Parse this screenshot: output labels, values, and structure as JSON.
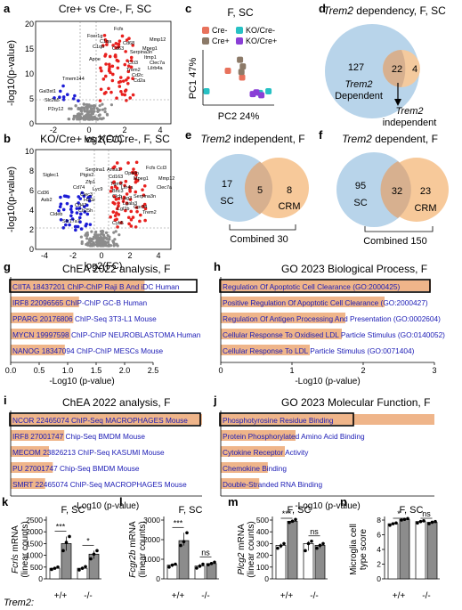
{
  "panels": {
    "a": {
      "letter": "a",
      "title": "Cre+ vs Cre-, F, SC",
      "xlabel": "log2(FC)",
      "ylabel": "-log10(p-value)",
      "xticks": [
        "-2",
        "0",
        "2",
        "4"
      ],
      "yticks": [
        "0",
        "5",
        "10",
        "15",
        "20"
      ],
      "genes": [
        "Fcfs",
        "Mmp12",
        "Foer1g",
        "C1qa",
        "Cd68",
        "Cd63",
        "C1qb",
        "Serpina3n",
        "Mpeg1",
        "Itmp1",
        "Clec7a",
        "Apoe",
        "Lilrb4a",
        "Ccl3",
        "Trem2",
        "Cd2c",
        "Cd2a",
        "Tmem144",
        "Gal3st1",
        "Slc2a5",
        "P2ry12"
      ]
    },
    "b": {
      "letter": "b",
      "title": "KO/Cre+ vs KO/Cre-, F, SC",
      "xlabel": "log2(FC)",
      "ylabel": "-log10(p-value)",
      "xticks": [
        "-4",
        "-2",
        "0",
        "2",
        "4"
      ],
      "yticks": [
        "0",
        "2",
        "4",
        "6",
        "8",
        "10"
      ],
      "genes": [
        "Fcfs",
        "Ccl3",
        "Serpina1",
        "Anxa1",
        "Opalin",
        "Mpeg1",
        "Ptgis2",
        "Cd163",
        "Mmp12",
        "Siglec1",
        "Zfp1",
        "Tgm2",
        "Clec7a",
        "Lilr4a",
        "Cd74",
        "Lyc9",
        "Bnc3",
        "Cd36",
        "Clec3",
        "Clcb",
        "Lag3",
        "Serpina3n",
        "Asb2",
        "H2Gr",
        "Lgals3",
        "Cd47",
        "Lgl1b",
        "Gpr34",
        "Ch25h",
        "Trem2",
        "Cldeb",
        "Slc17a7",
        "Cyb5"
      ]
    },
    "c": {
      "letter": "c",
      "title": "F, SC",
      "xlabel": "PC2 24%",
      "ylabel": "PC1 47%",
      "legend": [
        "Cre-",
        "Cre+",
        "KO/Cre-",
        "KO/Cre+"
      ]
    },
    "d": {
      "letter": "d",
      "title_italic": "Trem2",
      "title_rest": " dependency, F, SC",
      "left_num": "127",
      "overlap_num": "22",
      "right_num": "4",
      "left_label_italic": "Trem2",
      "left_label_rest": "Dependent",
      "right_label_italic": "Trem2",
      "right_label_rest": "independent"
    },
    "e": {
      "letter": "e",
      "title_italic": "Trem2",
      "title_rest": "  independent, F",
      "left_num": "17",
      "overlap_num": "5",
      "right_num": "8",
      "left_label": "SC",
      "right_label": "CRM",
      "combined": "Combined 30"
    },
    "f": {
      "letter": "f",
      "title_italic": "Trem2",
      "title_rest": " dependent, F",
      "left_num": "95",
      "overlap_num": "32",
      "right_num": "23",
      "left_label": "SC",
      "right_label": "CRM",
      "combined": "Combined 150"
    },
    "g": {
      "letter": "g",
      "title": "ChEA 2022 analysis, F",
      "xlabel": "-Log10 (p-value)",
      "xticks": [
        "0.0",
        "0.5",
        "1.0",
        "1.5",
        "2.0",
        "2.5"
      ],
      "terms": [
        "CIITA 18437201 ChIP-ChIP Raji B And iDC Human",
        "IRF8 22096565 ChIP-ChIP GC-B Human",
        "PPARG 20176806 ChIP-Seq 3T3-L1 Mouse",
        "MYCN 19997598 ChIP-ChIP NEUROBLASTOMA Human",
        "NANOG 18347094 ChIP-ChIP MESCs Mouse"
      ]
    },
    "h": {
      "letter": "h",
      "title": "GO 2023 Biological Process, F",
      "xlabel": "-Log10 (p-value)",
      "xticks": [
        "0",
        "1",
        "2",
        "3"
      ],
      "terms": [
        "Regulation Of Apoptotic Cell Clearance (GO:2000425)",
        "Positive Regulation Of Apoptotic Cell Clearance (GO:2000427)",
        "Regulation Of Antigen Processing And Presentation (GO:0002604)",
        "Cellular Response To Oxidised LDL Particle Stimulus (GO:0140052)",
        "Cellular Response To LDL Particle Stimulus (GO:0071404)"
      ]
    },
    "i": {
      "letter": "i",
      "title": "ChEA 2022 analysis, F",
      "xlabel": "-Log10 (p-value)",
      "terms": [
        "NCOR 22465074 ChIP-Seq MACROPHAGES Mouse",
        "IRF8 27001747 Chip-Seq BMDM Mouse",
        "MECOM 23826213 ChIP-Seq KASUMI Mouse",
        "PU 27001747 Chip-Seq BMDM Mouse",
        "SMRT 22465074 ChIP-Seq MACROPHAGES Mouse"
      ]
    },
    "j": {
      "letter": "j",
      "title": "GO 2023 Molecular Function, F",
      "xlabel": "-Log10 (p-value)",
      "terms": [
        "Phosphotyrosine Residue Binding",
        "Protein Phosphorylated Amino Acid Binding",
        "Cytokine Receptor Activity",
        "Chemokine Binding",
        "Double-Stranded RNA Binding"
      ]
    },
    "k": {
      "letter": "k",
      "title": "F, SC",
      "gene": "Fcrls",
      "ylabel_rest": " mRNA",
      "ylabel2": "(linear counts)",
      "yticks": [
        "0",
        "500",
        "1000",
        "1500",
        "2000",
        "2500"
      ],
      "sig": [
        "***",
        "*"
      ],
      "groups": [
        "+/+",
        "-/-"
      ]
    },
    "l": {
      "letter": "l",
      "title": "F, SC",
      "gene": "Fcgr2b",
      "ylabel_rest": " mRNA",
      "ylabel2": "(linear counts)",
      "yticks": [
        "0",
        "1000",
        "2000",
        "3000"
      ],
      "sig": [
        "***",
        "ns"
      ],
      "groups": [
        "+/+",
        "-/-"
      ]
    },
    "m": {
      "letter": "m",
      "title": "F, SC",
      "gene": "Plcg2",
      "ylabel_rest": " mRNA",
      "ylabel2": "(linear counts)",
      "yticks": [
        "0",
        "100",
        "200",
        "300",
        "400",
        "500"
      ],
      "sig": [
        "***",
        "ns"
      ],
      "groups": [
        "+/+",
        "-/-"
      ]
    },
    "n": {
      "letter": "n",
      "title": "F, SC",
      "ylabel": "Microglia cell",
      "ylabel2": "type score",
      "yticks": [
        "0",
        "2",
        "4",
        "6",
        "8"
      ],
      "sig": [
        "*",
        "ns"
      ],
      "groups": [
        "+/+",
        "-/-"
      ]
    },
    "trem2_label": "Trem2:"
  },
  "colors": {
    "red": "#e8201e",
    "blue": "#1c1cd6",
    "grey": "#8c8c8c",
    "venn_blue": "#b8d4ea",
    "venn_orange": "#f7c99a",
    "overlap": "#d7b08f",
    "enrich_bar": "#efb58a",
    "enrich_text": "#1b1bb5",
    "bar_white": "#ffffff",
    "bar_grey": "#8c8c8c",
    "pca": {
      "Cre-": "#e8725c",
      "Cre+": "#8c7a68",
      "KO/Cre-": "#27c1c4",
      "KO/Cre+": "#8a3fd6"
    }
  },
  "chart_data": [
    {
      "panel": "g",
      "type": "bar",
      "orientation": "horizontal",
      "categories": [
        "CIITA 18437201 ChIP-ChIP Raji B And iDC Human",
        "IRF8 22096565 ChIP-ChIP GC-B Human",
        "PPARG 20176806 ChIP-Seq 3T3-L1 Mouse",
        "MYCN 19997598 ChIP-ChIP NEUROBLASTOMA Human",
        "NANOG 18347094 ChIP-ChIP MESCs Mouse"
      ],
      "values": [
        2.35,
        1.2,
        1.1,
        1.05,
        0.95
      ],
      "xlim": [
        0,
        2.5
      ]
    },
    {
      "panel": "h",
      "type": "bar",
      "orientation": "horizontal",
      "categories": [
        "Regulation Of Apoptotic Cell Clearance (GO:2000425)",
        "Positive Regulation Of Apoptotic Cell Clearance (GO:2000427)",
        "Regulation Of Antigen Processing And Presentation (GO:0002604)",
        "Cellular Response To Oxidised LDL Particle Stimulus (GO:0140052)",
        "Cellular Response To LDL Particle Stimulus (GO:0071404)"
      ],
      "values": [
        2.95,
        2.3,
        1.75,
        1.7,
        1.25
      ],
      "xlim": [
        0,
        3
      ]
    },
    {
      "panel": "i",
      "type": "bar",
      "orientation": "horizontal",
      "categories": [
        "NCOR 22465074 ChIP-Seq MACROPHAGES Mouse",
        "IRF8 27001747 Chip-Seq BMDM Mouse",
        "MECOM 23826213 ChIP-Seq KASUMI Mouse",
        "PU 27001747 Chip-Seq BMDM Mouse",
        "SMRT 22465074 ChIP-Seq MACROPHAGES Mouse"
      ],
      "values": [
        1.0,
        0.28,
        0.2,
        0.22,
        0.18
      ],
      "xlim": [
        0,
        1
      ]
    },
    {
      "panel": "j",
      "type": "bar",
      "orientation": "horizontal",
      "categories": [
        "Phosphotyrosine Residue Binding",
        "Protein Phosphorylated Amino Acid Binding",
        "Cytokine Receptor Activity",
        "Chemokine Binding",
        "Double-Stranded RNA Binding"
      ],
      "values": [
        1.0,
        0.35,
        0.3,
        0.22,
        0.18
      ],
      "xlim": [
        0,
        1
      ]
    },
    {
      "panel": "k",
      "type": "bar",
      "categories": [
        "+/+",
        "+/+",
        "-/-",
        "-/-"
      ],
      "values": [
        450,
        1500,
        450,
        1050
      ],
      "points": [
        [
          400,
          450,
          500
        ],
        [
          1200,
          1550,
          1800
        ],
        [
          380,
          450,
          520
        ],
        [
          850,
          1050,
          1200
        ]
      ],
      "ylim": [
        0,
        2500
      ]
    },
    {
      "panel": "l",
      "type": "bar",
      "categories": [
        "+/+",
        "+/+",
        "-/-",
        "-/-"
      ],
      "values": [
        700,
        1950,
        650,
        780
      ],
      "points": [
        [
          600,
          700,
          750
        ],
        [
          1700,
          1900,
          2350
        ],
        [
          550,
          650,
          750
        ],
        [
          720,
          780,
          850
        ]
      ],
      "ylim": [
        0,
        3000
      ]
    },
    {
      "panel": "m",
      "type": "bar",
      "categories": [
        "+/+",
        "+/+",
        "-/-",
        "-/-"
      ],
      "values": [
        285,
        490,
        300,
        285
      ],
      "points": [
        [
          260,
          280,
          300
        ],
        [
          480,
          490,
          505
        ],
        [
          240,
          300,
          320
        ],
        [
          260,
          285,
          300
        ]
      ],
      "ylim": [
        0,
        500
      ]
    },
    {
      "panel": "n",
      "type": "bar",
      "categories": [
        "+/+",
        "+/+",
        "-/-",
        "-/-"
      ],
      "values": [
        7.5,
        8.1,
        7.8,
        7.7
      ],
      "points": [
        [
          7.3,
          7.5,
          7.6
        ],
        [
          8.0,
          8.1,
          8.2
        ],
        [
          7.6,
          7.8,
          7.9
        ],
        [
          7.5,
          7.7,
          7.8
        ]
      ],
      "ylim": [
        0,
        8
      ]
    },
    {
      "panel": "c",
      "type": "scatter",
      "series": [
        {
          "name": "Cre-",
          "points": [
            [
              0.35,
              0.62
            ],
            [
              0.55,
              0.5
            ]
          ]
        },
        {
          "name": "Cre+",
          "points": [
            [
              0.52,
              0.82
            ],
            [
              0.56,
              0.7
            ],
            [
              0.54,
              0.6
            ]
          ]
        },
        {
          "name": "KO/Cre-",
          "points": [
            [
              0.05,
              0.25
            ],
            [
              0.8,
              0.22
            ],
            [
              0.92,
              0.25
            ]
          ]
        },
        {
          "name": "KO/Cre+",
          "points": [
            [
              0.7,
              0.2
            ],
            [
              0.75,
              0.23
            ],
            [
              0.82,
              0.18
            ]
          ]
        }
      ]
    }
  ]
}
